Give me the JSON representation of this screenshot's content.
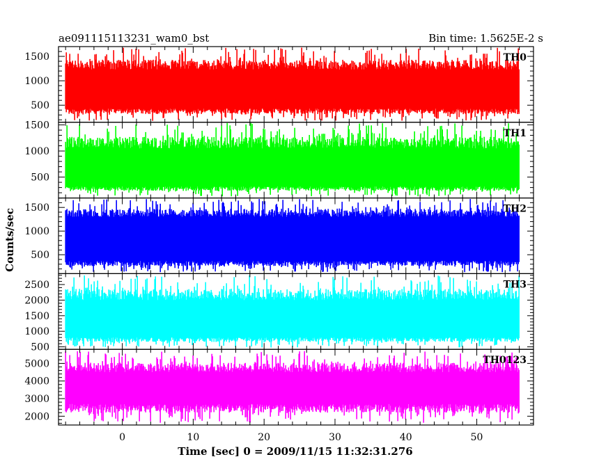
{
  "header": {
    "title": "ae091115113231_wam0_bst",
    "bin_time": "Bin time: 1.5625E-2 s"
  },
  "chart_data": {
    "type": "line",
    "xlabel": "Time [sec] 0 = 2009/11/15 11:32:31.276",
    "ylabel": "Counts/sec",
    "xlim": [
      -9,
      58
    ],
    "x_ticks": [
      0,
      10,
      20,
      30,
      40,
      50
    ],
    "x_range_data": [
      -8,
      56
    ],
    "grid": false,
    "panels": [
      {
        "name": "TH0",
        "color": "#ff0000",
        "ylim": [
          150,
          1700
        ],
        "yticks": [
          500,
          1000,
          1500
        ],
        "mean": 830,
        "band_low": 430,
        "band_high": 1230,
        "min_val": 180,
        "max_val": 1680
      },
      {
        "name": "TH1",
        "color": "#00ff00",
        "ylim": [
          100,
          1550
        ],
        "yticks": [
          500,
          1000,
          1500
        ],
        "mean": 680,
        "band_low": 320,
        "band_high": 1050,
        "min_val": 130,
        "max_val": 1540
      },
      {
        "name": "TH2",
        "color": "#0000ff",
        "ylim": [
          100,
          1700
        ],
        "yticks": [
          500,
          1000,
          1500
        ],
        "mean": 820,
        "band_low": 370,
        "band_high": 1300,
        "min_val": 130,
        "max_val": 1680
      },
      {
        "name": "TH3",
        "color": "#00ffff",
        "ylim": [
          420,
          2850
        ],
        "yticks": [
          500,
          1000,
          1500,
          2000,
          2500
        ],
        "mean": 1400,
        "band_low": 800,
        "band_high": 2000,
        "min_val": 480,
        "max_val": 2800
      },
      {
        "name": "TH0123",
        "color": "#ff00ff",
        "ylim": [
          1500,
          5800
        ],
        "yticks": [
          2000,
          3000,
          4000,
          5000
        ],
        "mean": 3500,
        "band_low": 2700,
        "band_high": 4500,
        "min_val": 1600,
        "max_val": 5700
      }
    ]
  }
}
